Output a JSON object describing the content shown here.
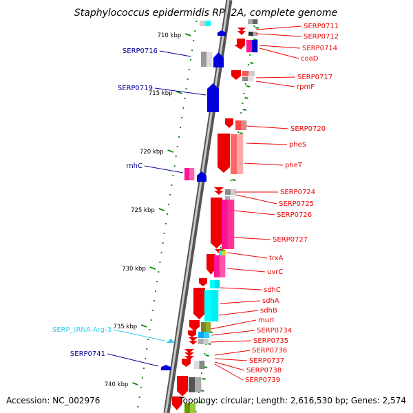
{
  "title": "Staphylococcus epidermidis RP62A, complete genome",
  "footer": {
    "accession": "Accession: NC_002976",
    "summary": "Topology: circular; Length: 2,616,530 bp; Genes: 2,574"
  },
  "colors": {
    "forward_gene": "#ee0000",
    "reverse_gene": "#0000dd",
    "reverse_label": "#000099",
    "trna": "#33ccee",
    "tick": "#118811"
  },
  "ticks": [
    "710 kbp",
    "715 kbp",
    "720 kbp",
    "725 kbp",
    "730 kbp",
    "735 kbp",
    "740 kbp"
  ],
  "left_labels": [
    {
      "text": "SERP0716",
      "type": "gene"
    },
    {
      "text": "SERP0719",
      "type": "gene"
    },
    {
      "text": "rnhC",
      "type": "gene"
    },
    {
      "text": "SERP_tRNA-Arg-3",
      "type": "trna"
    },
    {
      "text": "SERP0741",
      "type": "gene"
    }
  ],
  "right_labels": [
    "SERP0711",
    "SERP0712",
    "SERP0714",
    "coaD",
    "SERP0717",
    "rpmF",
    "SERP0720",
    "pheS",
    "pheT",
    "SERP0724",
    "SERP0725",
    "SERP0726",
    "SERP0727",
    "trxA",
    "uvrC",
    "sdhC",
    "sdhA",
    "sdhB",
    "murI",
    "SERP0734",
    "SERP0735",
    "SERP0736",
    "SERP0737",
    "SERP0738",
    "SERP0739"
  ]
}
